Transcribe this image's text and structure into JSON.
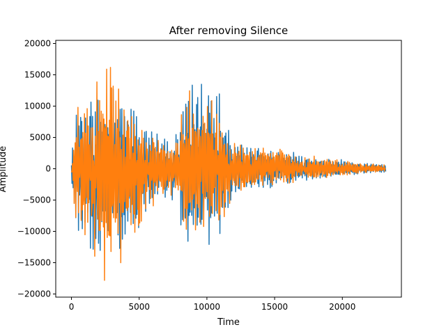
{
  "chart_data": {
    "type": "line",
    "title": "After removing Silence",
    "xlabel": "Time",
    "ylabel": "Amplitude",
    "xlim": [
      -1160,
      24360
    ],
    "ylim": [
      -20500,
      20500
    ],
    "x_ticks": [
      0,
      5000,
      10000,
      15000,
      20000
    ],
    "y_ticks": [
      -20000,
      -15000,
      -10000,
      -5000,
      0,
      5000,
      10000,
      15000,
      20000
    ],
    "grid": false,
    "legend": "none",
    "sample_count": 23200,
    "series": [
      {
        "color": "#1f77b4",
        "envelope": {
          "x": [
            0,
            300,
            800,
            1500,
            2500,
            3300,
            4000,
            5000,
            5800,
            6500,
            7200,
            7800,
            8300,
            9000,
            9600,
            10300,
            11000,
            11500,
            12000,
            13000,
            14000,
            15000,
            16000,
            17000,
            18000,
            19000,
            20000,
            21000,
            22000,
            23200
          ],
          "max": [
            2000,
            10000,
            13500,
            14500,
            11000,
            15500,
            12500,
            9500,
            6500,
            5500,
            4500,
            6500,
            14000,
            16500,
            15000,
            13000,
            13500,
            8000,
            5000,
            3800,
            3500,
            4500,
            3000,
            2400,
            2000,
            1800,
            1500,
            1200,
            1000,
            800
          ],
          "min": [
            -2000,
            -9000,
            -13000,
            -14000,
            -15000,
            -13000,
            -14000,
            -10000,
            -8000,
            -5500,
            -5000,
            -6000,
            -13500,
            -13000,
            -12500,
            -13000,
            -13500,
            -8000,
            -4500,
            -3500,
            -3500,
            -3000,
            -2800,
            -2200,
            -1800,
            -1500,
            -1200,
            -1000,
            -800,
            -600
          ]
        }
      },
      {
        "color": "#ff7f0e",
        "envelope": {
          "x": [
            0,
            300,
            800,
            1500,
            2500,
            3000,
            3300,
            4000,
            5000,
            5800,
            6500,
            7200,
            7800,
            8300,
            9000,
            9600,
            10300,
            11000,
            11500,
            12000,
            13000,
            14000,
            15000,
            16000,
            17000,
            18000,
            19000,
            20000,
            21000,
            22000,
            23200
          ],
          "max": [
            1800,
            10200,
            10500,
            14000,
            17000,
            18500,
            16000,
            14500,
            8000,
            6000,
            5500,
            4500,
            6000,
            12500,
            13500,
            13000,
            12500,
            12000,
            8000,
            4800,
            3800,
            3500,
            4500,
            2800,
            2300,
            2000,
            1700,
            1400,
            1100,
            900,
            700
          ],
          "min": [
            -1800,
            -11000,
            -12500,
            -16500,
            -18500,
            -18000,
            -17500,
            -15500,
            -12000,
            -7000,
            -6000,
            -5000,
            -5500,
            -9500,
            -11500,
            -10500,
            -10500,
            -10000,
            -7000,
            -4000,
            -3200,
            -3200,
            -2800,
            -2600,
            -2000,
            -1700,
            -1400,
            -1100,
            -900,
            -700,
            -500
          ]
        }
      }
    ]
  }
}
